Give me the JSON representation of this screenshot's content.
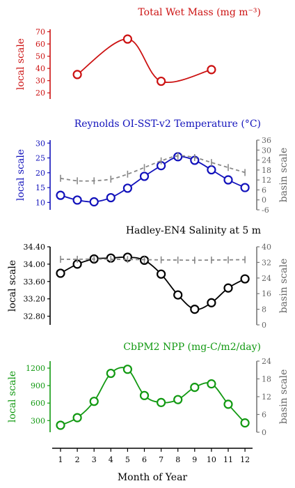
{
  "chart_data": {
    "type": "line",
    "xlabel": "Month of Year",
    "x_ticks": [
      "1",
      "2",
      "3",
      "4",
      "5",
      "6",
      "7",
      "8",
      "9",
      "10",
      "11",
      "12"
    ],
    "panels": [
      {
        "title": "Total Wet Mass (mg m⁻³)",
        "color": "#cc1111",
        "ylabel_left": "local scale",
        "ylabel_right": "",
        "ylim_left": [
          15,
          72
        ],
        "yticks_left": [
          "20",
          "30",
          "40",
          "50",
          "60",
          "70"
        ],
        "series": [
          {
            "x": [
              2,
              5,
              7,
              10
            ],
            "values": [
              35,
              64,
              29.5,
              39
            ]
          }
        ]
      },
      {
        "title": "Reynolds OI-SST-v2 Temperature (°C)",
        "color": "#1111bb",
        "ylabel_left": "local scale",
        "ylabel_right": "basin scale",
        "ylim_left": [
          7.5,
          31
        ],
        "yticks_left": [
          "10",
          "15",
          "20",
          "25",
          "30"
        ],
        "ylim_right": [
          -6,
          36
        ],
        "yticks_right": [
          "-6",
          "0",
          "6",
          "12",
          "18",
          "24",
          "30",
          "36"
        ],
        "series": [
          {
            "x": [
              1,
              2,
              3,
              4,
              5,
              6,
              7,
              8,
              9,
              10,
              11,
              12
            ],
            "values": [
              12.4,
              10.8,
              10.2,
              11.6,
              14.8,
              18.8,
              22.4,
              25.4,
              24.2,
              21.0,
              17.6,
              15.0
            ]
          },
          {
            "x": [
              1,
              2,
              3,
              4,
              5,
              6,
              7,
              8,
              9,
              10,
              11,
              12
            ],
            "values": [
              13,
              11.5,
              11.5,
              12.5,
              15.5,
              19.5,
              23.5,
              26.5,
              25.5,
              22.5,
              19.5,
              16.5
            ],
            "axis": "right",
            "style": "dashed"
          }
        ]
      },
      {
        "title": "Hadley-EN4 Salinity at 5 m",
        "color": "#000000",
        "ylabel_left": "local scale",
        "ylabel_right": "basin scale",
        "ylim_left": [
          32.6,
          34.4
        ],
        "yticks_left": [
          "32.80",
          "33.20",
          "33.60",
          "34.00",
          "34.40"
        ],
        "ylim_right": [
          0,
          40
        ],
        "yticks_right": [
          "0",
          "8",
          "16",
          "24",
          "32",
          "40"
        ],
        "series": [
          {
            "x": [
              1,
              2,
              3,
              4,
              5,
              6,
              7,
              8,
              9,
              10,
              11,
              12
            ],
            "values": [
              33.79,
              34.0,
              34.12,
              34.14,
              34.16,
              34.09,
              33.77,
              33.29,
              32.96,
              33.11,
              33.45,
              33.66
            ]
          },
          {
            "x": [
              1,
              2,
              3,
              4,
              5,
              6,
              7,
              8,
              9,
              10,
              11,
              12
            ],
            "values": [
              33.6,
              33.6,
              33.7,
              33.6,
              33.5,
              33.4,
              33.3,
              33.2,
              33.1,
              33.2,
              33.3,
              33.4
            ],
            "axis": "right",
            "style": "dashed"
          }
        ]
      },
      {
        "title": "CbPM2 NPP (mg-C/m2/day)",
        "color": "#119911",
        "ylabel_left": "local scale",
        "ylabel_right": "basin scale",
        "ylim_left": [
          100,
          1320
        ],
        "yticks_left": [
          "300",
          "600",
          "900",
          "1200"
        ],
        "ylim_right": [
          0,
          24
        ],
        "yticks_right": [
          "0",
          "6",
          "12",
          "18",
          "24"
        ],
        "series": [
          {
            "x": [
              1,
              2,
              3,
              4,
              5,
              6,
              7,
              8,
              9,
              10,
              11,
              12
            ],
            "values": [
              220,
              350,
              630,
              1110,
              1180,
              730,
              610,
              660,
              870,
              930,
              580,
              260
            ]
          }
        ]
      }
    ]
  }
}
